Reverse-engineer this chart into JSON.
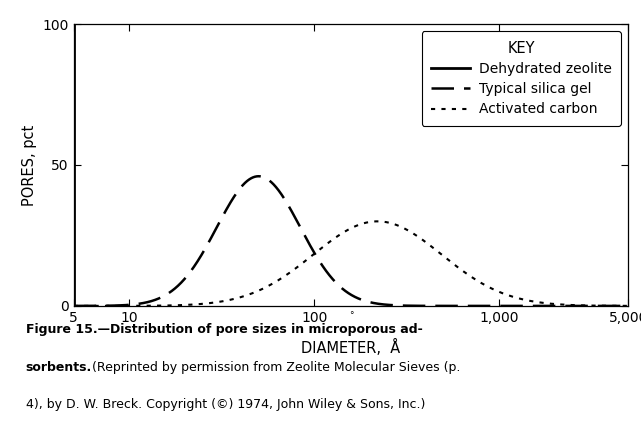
{
  "ylabel": "PORES, pct",
  "xlim": [
    5,
    5000
  ],
  "ylim": [
    0,
    100
  ],
  "yticks": [
    0,
    50,
    100
  ],
  "xticks": [
    5,
    10,
    100,
    1000,
    5000
  ],
  "xticklabels": [
    "5",
    "10",
    "100",
    "1,000",
    "5,000"
  ],
  "key_title": "KEY",
  "legend_entries": [
    "Dehydrated zeolite",
    "Typical silica gel",
    "Activated carbon"
  ],
  "zeolite_x": 5,
  "silica_peak_x": 50,
  "silica_peak_y": 46,
  "silica_sigma": 0.52,
  "carbon_peak_x": 220,
  "carbon_peak_y": 30,
  "carbon_sigma": 0.8,
  "line_color": "#000000",
  "caption_line1": "Figure 15.—Distribution of pore sizes in microporous ad-",
  "caption_line2_bold": "sorbents.",
  "caption_line2_normal": " (Reprinted by permission from Zeolite Molecular Sieves (p.",
  "caption_line3": "4), by D. W. Breck. Copyright (©) 1974, John Wiley & Sons, Inc.)"
}
